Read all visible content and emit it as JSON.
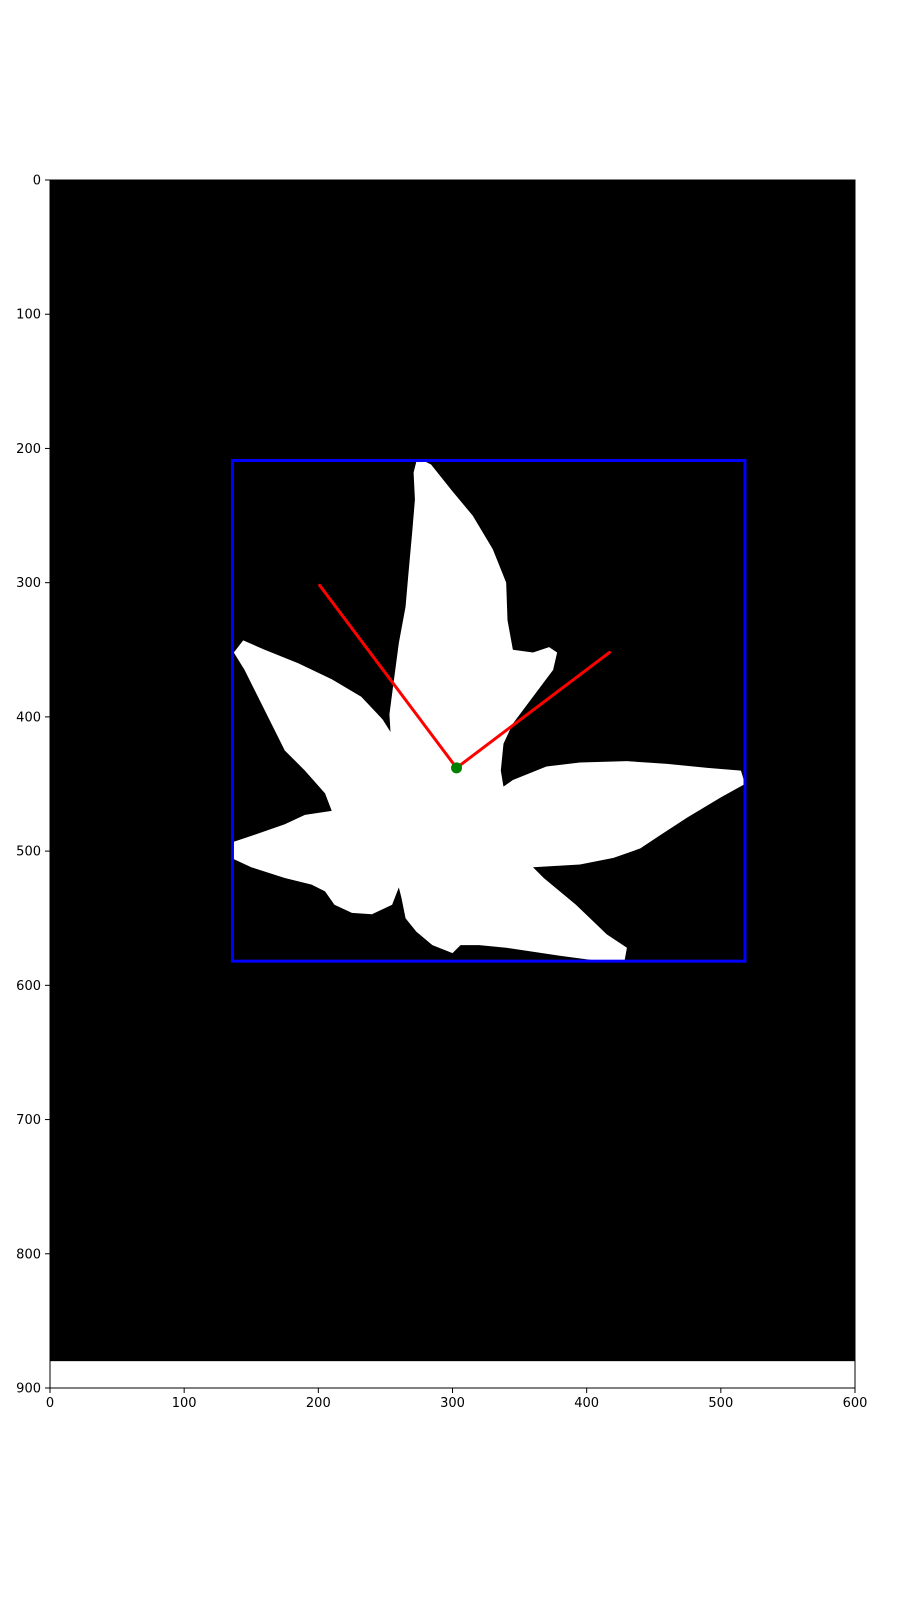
{
  "chart_data": {
    "type": "scatter",
    "title": "",
    "xlabel": "",
    "ylabel": "",
    "xlim": [
      0,
      600
    ],
    "ylim": [
      900,
      0
    ],
    "y_inverted": true,
    "grid": false,
    "x_ticks": [
      0,
      100,
      200,
      300,
      400,
      500,
      600
    ],
    "y_ticks": [
      0,
      100,
      200,
      300,
      400,
      500,
      600,
      700,
      800,
      900
    ],
    "image": {
      "description_colors": {
        "background": "#000000",
        "shape": "#ffffff"
      },
      "image_extent_y": [
        0,
        880
      ],
      "shape_outline": [
        [
          276,
          208
        ],
        [
          284,
          212
        ],
        [
          300,
          232
        ],
        [
          315,
          250
        ],
        [
          330,
          275
        ],
        [
          340,
          300
        ],
        [
          341,
          328
        ],
        [
          345,
          350
        ],
        [
          360,
          352
        ],
        [
          372,
          348
        ],
        [
          378,
          352
        ],
        [
          375,
          365
        ],
        [
          360,
          385
        ],
        [
          345,
          405
        ],
        [
          338,
          420
        ],
        [
          336,
          440
        ],
        [
          338,
          452
        ],
        [
          345,
          447
        ],
        [
          370,
          437
        ],
        [
          395,
          434
        ],
        [
          430,
          433
        ],
        [
          460,
          435
        ],
        [
          490,
          438
        ],
        [
          515,
          440
        ],
        [
          518,
          450
        ],
        [
          500,
          460
        ],
        [
          475,
          475
        ],
        [
          455,
          488
        ],
        [
          440,
          498
        ],
        [
          420,
          505
        ],
        [
          395,
          510
        ],
        [
          360,
          512
        ],
        [
          368,
          520
        ],
        [
          392,
          540
        ],
        [
          415,
          562
        ],
        [
          430,
          572
        ],
        [
          428,
          583
        ],
        [
          410,
          582
        ],
        [
          380,
          578
        ],
        [
          340,
          572
        ],
        [
          320,
          570
        ],
        [
          306,
          570
        ],
        [
          300,
          576
        ],
        [
          285,
          570
        ],
        [
          273,
          560
        ],
        [
          265,
          550
        ],
        [
          262,
          535
        ],
        [
          260,
          527
        ],
        [
          255,
          540
        ],
        [
          240,
          547
        ],
        [
          225,
          546
        ],
        [
          212,
          540
        ],
        [
          205,
          530
        ],
        [
          195,
          525
        ],
        [
          175,
          520
        ],
        [
          150,
          512
        ],
        [
          135,
          505
        ],
        [
          137,
          493
        ],
        [
          152,
          488
        ],
        [
          175,
          480
        ],
        [
          190,
          473
        ],
        [
          210,
          470
        ],
        [
          205,
          457
        ],
        [
          190,
          440
        ],
        [
          175,
          425
        ],
        [
          165,
          405
        ],
        [
          155,
          385
        ],
        [
          145,
          365
        ],
        [
          137,
          352
        ],
        [
          144,
          343
        ],
        [
          160,
          350
        ],
        [
          185,
          360
        ],
        [
          210,
          372
        ],
        [
          232,
          385
        ],
        [
          248,
          402
        ],
        [
          258,
          418
        ],
        [
          262,
          431
        ],
        [
          258,
          428
        ],
        [
          254,
          415
        ],
        [
          253,
          398
        ],
        [
          256,
          375
        ],
        [
          260,
          345
        ],
        [
          265,
          318
        ],
        [
          267,
          295
        ],
        [
          270,
          262
        ],
        [
          272,
          238
        ],
        [
          271,
          218
        ],
        [
          273,
          210
        ]
      ]
    },
    "bounding_box": {
      "color": "#0000ff",
      "x_min": 136,
      "x_max": 518,
      "y_min": 209,
      "y_max": 582
    },
    "center_point": {
      "color": "#008000",
      "x": 303,
      "y": 438
    },
    "lines": [
      {
        "color": "#ff0000",
        "x": [
          303,
          201
        ],
        "y": [
          438,
          302
        ]
      },
      {
        "color": "#ff0000",
        "x": [
          303,
          417
        ],
        "y": [
          438,
          352
        ]
      }
    ]
  }
}
